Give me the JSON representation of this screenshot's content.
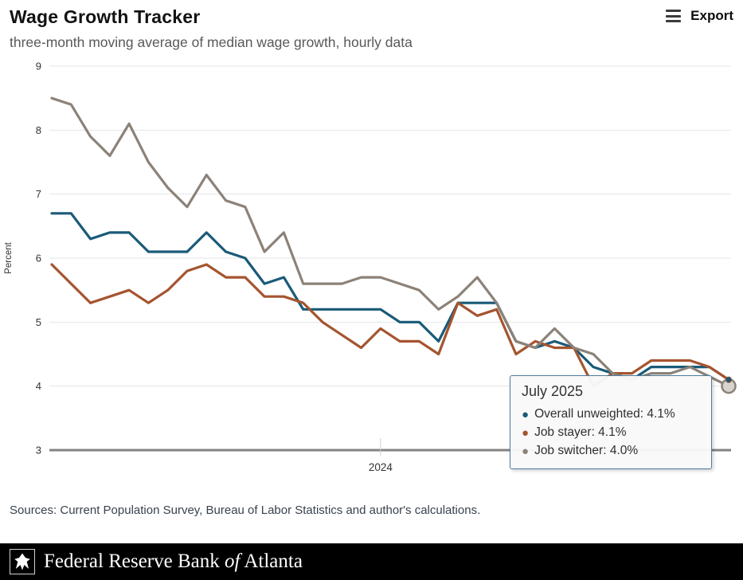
{
  "header": {
    "title": "Wage Growth Tracker",
    "subtitle": "three-month moving average of median wage growth, hourly data",
    "export_label": "Export"
  },
  "chart_data": {
    "type": "line",
    "title": "Wage Growth Tracker",
    "ylabel": "Percent",
    "ylim": [
      3,
      9
    ],
    "y_ticks": [
      3,
      4,
      5,
      6,
      7,
      8,
      9
    ],
    "x_tick_label": "2024",
    "x_tick_index": 17,
    "n_points": 36,
    "grid": true,
    "legend_position": "none",
    "series": [
      {
        "name": "Overall unweighted",
        "color": "#1a5a78",
        "values": [
          6.7,
          6.7,
          6.3,
          6.4,
          6.4,
          6.1,
          6.1,
          6.1,
          6.4,
          6.1,
          6.0,
          5.6,
          5.7,
          5.2,
          5.2,
          5.2,
          5.2,
          5.2,
          5.0,
          5.0,
          4.7,
          5.3,
          5.3,
          5.3,
          4.7,
          4.6,
          4.7,
          4.6,
          4.3,
          4.2,
          4.1,
          4.3,
          4.3,
          4.3,
          4.3,
          4.1
        ]
      },
      {
        "name": "Job stayer",
        "color": "#a5542f",
        "values": [
          5.9,
          5.6,
          5.3,
          5.4,
          5.5,
          5.3,
          5.5,
          5.8,
          5.9,
          5.7,
          5.7,
          5.4,
          5.4,
          5.3,
          5.0,
          4.8,
          4.6,
          4.9,
          4.7,
          4.7,
          4.5,
          5.3,
          5.1,
          5.2,
          4.5,
          4.7,
          4.6,
          4.6,
          4.0,
          4.2,
          4.2,
          4.4,
          4.4,
          4.4,
          4.3,
          4.1
        ]
      },
      {
        "name": "Job switcher",
        "color": "#8c8278",
        "values": [
          8.5,
          8.4,
          7.9,
          7.6,
          8.1,
          7.5,
          7.1,
          6.8,
          7.3,
          6.9,
          6.8,
          6.1,
          6.4,
          5.6,
          5.6,
          5.6,
          5.7,
          5.7,
          5.6,
          5.5,
          5.2,
          5.4,
          5.7,
          5.3,
          4.7,
          4.6,
          4.9,
          4.6,
          4.5,
          4.2,
          4.1,
          4.2,
          4.2,
          4.3,
          4.15,
          4.0
        ]
      }
    ]
  },
  "tooltip": {
    "title": "July 2025",
    "rows": [
      {
        "text": "Overall unweighted: 4.1%",
        "color": "#1a5a78"
      },
      {
        "text": "Job stayer: 4.1%",
        "color": "#a5542f"
      },
      {
        "text": "Job switcher: 4.0%",
        "color": "#8c8278"
      }
    ]
  },
  "sources": "Sources: Current Population Survey, Bureau of Labor Statistics and author's calculations.",
  "footer": {
    "text_before": "Federal Reserve Bank ",
    "text_italic": "of",
    "text_after": " Atlanta"
  }
}
